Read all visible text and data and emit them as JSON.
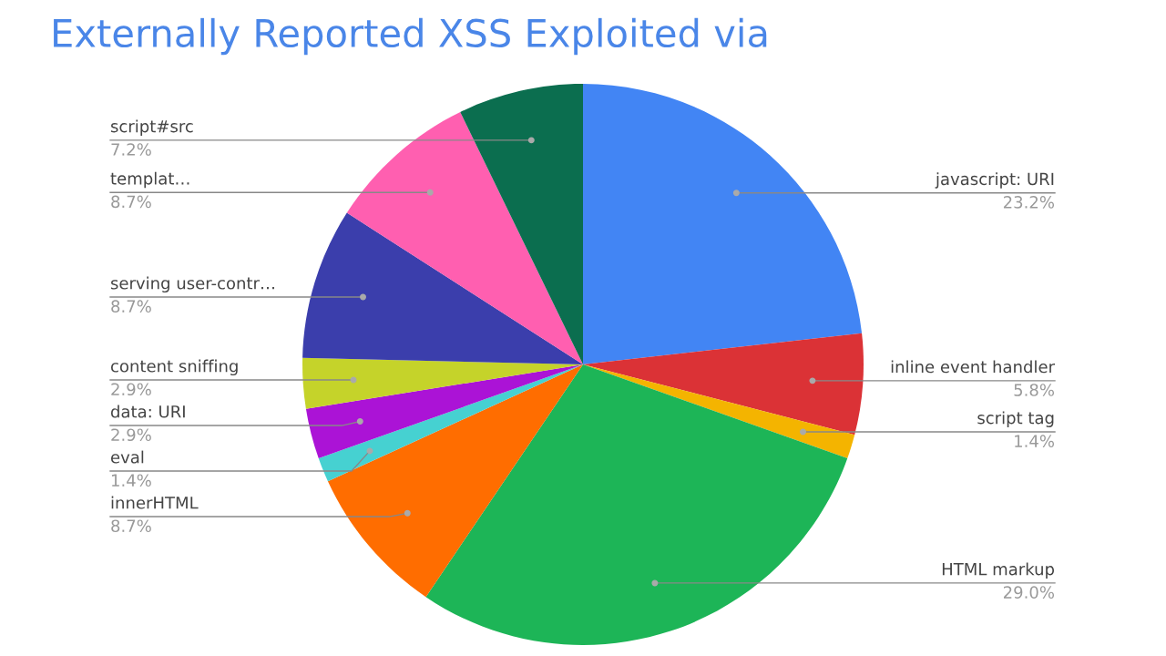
{
  "chart_data": {
    "type": "pie",
    "title": "Externally Reported XSS Exploited via",
    "categories": [
      "javascript: URI",
      "inline event handler",
      "script tag",
      "HTML markup",
      "innerHTML",
      "eval",
      "data: URI",
      "content sniffing",
      "serving user-contr…",
      "templat…",
      "script#src"
    ],
    "values": [
      23.2,
      5.8,
      1.4,
      29.0,
      8.7,
      1.4,
      2.9,
      2.9,
      8.7,
      8.7,
      7.2
    ],
    "value_labels": [
      "23.2%",
      "5.8%",
      "1.4%",
      "29.0%",
      "8.7%",
      "1.4%",
      "2.9%",
      "2.9%",
      "8.7%",
      "8.7%",
      "7.2%"
    ],
    "colors": [
      "#4285f4",
      "#db3236",
      "#f4b400",
      "#1db557",
      "#ff6d00",
      "#46d1d1",
      "#ab13d6",
      "#c5d32a",
      "#3b3eac",
      "#ff5fb0",
      "#0b6e4f"
    ],
    "legend": false
  }
}
